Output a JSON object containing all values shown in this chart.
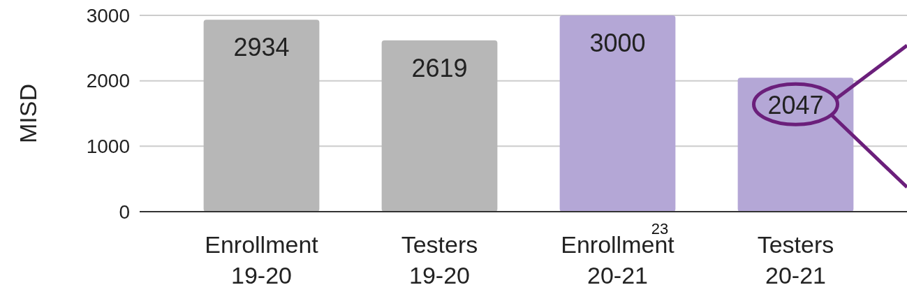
{
  "chart_data": {
    "type": "bar",
    "ylabel": "MISD",
    "categories": [
      "Enrollment\n19-20",
      "Testers\n19-20",
      "Enrollment\n20-21",
      "Testers\n20-21"
    ],
    "values": [
      2934,
      2619,
      3000,
      2047
    ],
    "colors": [
      "#b7b7b7",
      "#b7b7b7",
      "#b4a7d6",
      "#b4a7d6"
    ],
    "ylim": [
      0,
      3000
    ],
    "yticks": [
      0,
      1000,
      2000,
      3000
    ],
    "grid": "y",
    "data_labels": true,
    "annotations": [
      "23"
    ]
  }
}
